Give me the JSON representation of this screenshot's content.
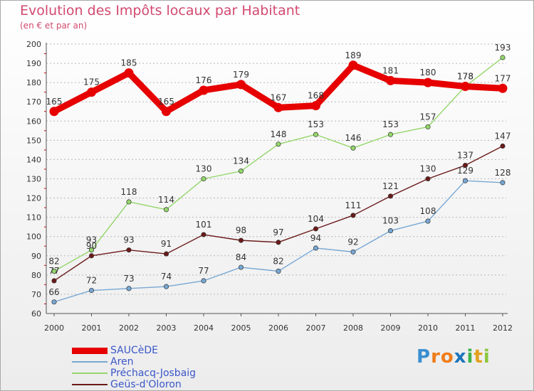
{
  "header": {
    "title": "Evolution des Impôts locaux par Habitant",
    "subtitle": "(en € et par an)"
  },
  "logo": {
    "text": "Proxiti",
    "letters": [
      "P",
      "r",
      "o",
      "x",
      "i",
      "t",
      "i"
    ],
    "letter_colors": [
      "#3a8fd0",
      "#ef7d1a",
      "#ef7d1a",
      "#1b75bc",
      "#3db34a",
      "#e2a21e",
      "#8cc63f"
    ]
  },
  "chart_data": {
    "type": "line",
    "title": "Evolution des Impôts locaux par Habitant",
    "subtitle": "(en € et par an)",
    "xlabel": "",
    "ylabel": "",
    "x": [
      "2000",
      "2001",
      "2002",
      "2003",
      "2004",
      "2005",
      "2006",
      "2007",
      "2008",
      "2009",
      "2010",
      "2011",
      "2012"
    ],
    "ylim": [
      60,
      200
    ],
    "yticks": [
      60,
      70,
      80,
      90,
      100,
      110,
      120,
      130,
      140,
      150,
      160,
      170,
      180,
      190,
      200
    ],
    "grid": "horizontal dashed",
    "legend_position": "bottom-left",
    "series": [
      {
        "name": "SAUCèDE",
        "color": "#e60000",
        "emphasis": true,
        "values": [
          165,
          175,
          185,
          165,
          176,
          179,
          167,
          168,
          189,
          181,
          180,
          178,
          177
        ]
      },
      {
        "name": "Aren",
        "color": "#77a7d3",
        "emphasis": false,
        "values": [
          66,
          72,
          73,
          74,
          77,
          84,
          82,
          94,
          92,
          103,
          108,
          129,
          128
        ]
      },
      {
        "name": "Préchacq-Josbaig",
        "color": "#94d76a",
        "emphasis": false,
        "values": [
          82,
          93,
          118,
          114,
          130,
          134,
          148,
          153,
          146,
          153,
          157,
          178,
          193
        ]
      },
      {
        "name": "Geüs-d'Oloron",
        "color": "#6b1a1a",
        "emphasis": false,
        "values": [
          77,
          90,
          93,
          91,
          101,
          98,
          97,
          104,
          111,
          121,
          130,
          137,
          147
        ]
      }
    ]
  }
}
